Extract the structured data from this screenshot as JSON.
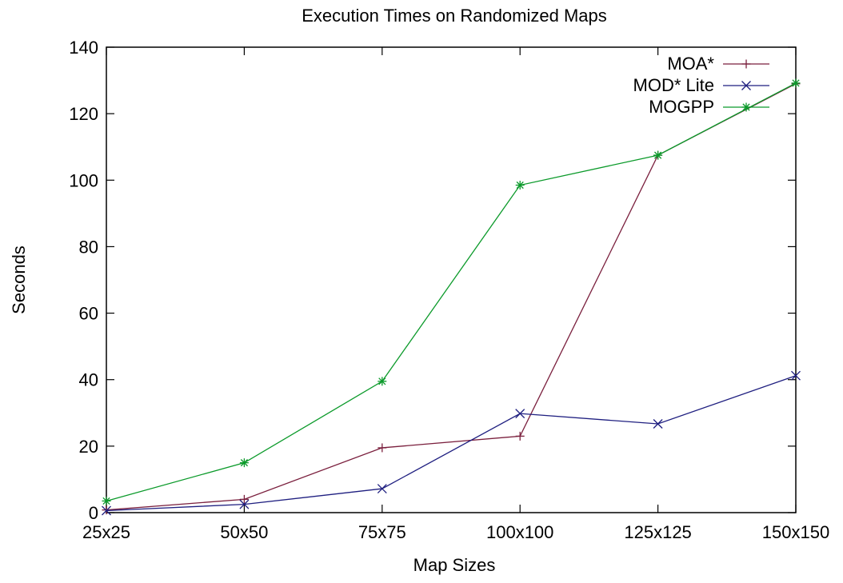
{
  "chart_data": {
    "type": "line",
    "title": "Execution Times on Randomized Maps",
    "xlabel": "Map Sizes",
    "ylabel": "Seconds",
    "categories": [
      "25x25",
      "50x50",
      "75x75",
      "100x100",
      "125x125",
      "150x150"
    ],
    "ylim": [
      0,
      140
    ],
    "yticks": [
      "0",
      "20",
      "40",
      "60",
      "80",
      "100",
      "120",
      "140"
    ],
    "legend_position": "top-right",
    "grid": false,
    "series": [
      {
        "name": "MOA*",
        "color": "#7a1f3d",
        "marker": "plus",
        "values": [
          0.8,
          4.0,
          19.5,
          23.0,
          107.5,
          129.0
        ]
      },
      {
        "name": "MOD* Lite",
        "color": "#1f1f80",
        "marker": "cross",
        "values": [
          0.6,
          2.5,
          7.2,
          29.8,
          26.7,
          41.2
        ]
      },
      {
        "name": "MOGPP",
        "color": "#0b9a2a",
        "marker": "star",
        "values": [
          3.5,
          15.0,
          39.5,
          98.5,
          107.5,
          129.2
        ]
      }
    ]
  }
}
